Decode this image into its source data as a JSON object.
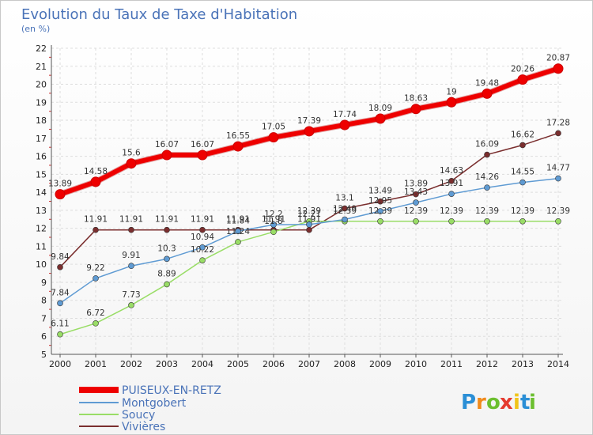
{
  "chart_data": {
    "type": "line",
    "title": "Evolution du Taux de Taxe d'Habitation",
    "subtitle": "(en %)",
    "xlabel": "",
    "ylabel": "",
    "ylim": [
      5,
      22
    ],
    "yticks": [
      5,
      6,
      7,
      8,
      9,
      10,
      11,
      12,
      13,
      14,
      15,
      16,
      17,
      18,
      19,
      20,
      21,
      22
    ],
    "grid": true,
    "legend_position": "bottom-left",
    "categories": [
      "2000",
      "2001",
      "2002",
      "2003",
      "2004",
      "2005",
      "2006",
      "2007",
      "2008",
      "2009",
      "2010",
      "2011",
      "2012",
      "2013",
      "2014"
    ],
    "series": [
      {
        "name": "PUISEUX-EN-RETZ",
        "color": "#ee0000",
        "values": [
          13.89,
          14.58,
          15.6,
          16.07,
          16.07,
          16.55,
          17.05,
          17.39,
          17.74,
          18.09,
          18.63,
          19,
          19.48,
          20.26,
          20.87
        ],
        "labels": [
          "13.89",
          "14.58",
          "15.6",
          "16.07",
          "16.07",
          "16.55",
          "17.05",
          "17.39",
          "17.74",
          "18.09",
          "18.63",
          "19",
          "19.48",
          "20.26",
          "20.87"
        ]
      },
      {
        "name": "Montgobert",
        "color": "#5f9bd3",
        "values": [
          7.84,
          9.22,
          9.91,
          10.3,
          10.94,
          11.84,
          12.2,
          12.21,
          12.49,
          12.95,
          13.43,
          13.91,
          14.26,
          14.55,
          14.77
        ],
        "labels": [
          "7.84",
          "9.22",
          "9.91",
          "10.3",
          "10.94",
          "11.84",
          "12.2",
          "12.21",
          "12.49",
          "12.95",
          "13.43",
          "13.91",
          "14.26",
          "14.55",
          "14.77"
        ]
      },
      {
        "name": "Soucy",
        "color": "#99dd66",
        "values": [
          6.11,
          6.72,
          7.73,
          8.89,
          10.22,
          11.24,
          11.8,
          12.39,
          12.39,
          12.39,
          12.39,
          12.39,
          12.39,
          12.39,
          12.39
        ],
        "labels": [
          "6.11",
          "6.72",
          "7.73",
          "8.89",
          "10.22",
          "11.24",
          "11.8",
          "12.39",
          "12.39",
          "12.39",
          "12.39",
          "12.39",
          "12.39",
          "12.39",
          "12.39"
        ]
      },
      {
        "name": "Vivières",
        "color": "#7a2e2e",
        "values": [
          9.84,
          11.91,
          11.91,
          11.91,
          11.91,
          11.91,
          11.91,
          11.91,
          13.1,
          13.49,
          13.89,
          14.63,
          16.09,
          16.62,
          17.28
        ],
        "labels": [
          "9.84",
          "11.91",
          "11.91",
          "11.91",
          "11.91",
          "11.91",
          "11.91",
          "11.91",
          "13.1",
          "13.49",
          "13.89",
          "14.63",
          "16.09",
          "16.62",
          "17.28"
        ]
      }
    ]
  },
  "brand": {
    "letters": [
      "P",
      "r",
      "o",
      "x",
      "i",
      "t",
      "i"
    ],
    "colors": [
      "#2b8fd6",
      "#f08a1c",
      "#6cbf2f",
      "#e53a2f",
      "#f0c419",
      "#2b8fd6",
      "#6cbf2f"
    ]
  }
}
